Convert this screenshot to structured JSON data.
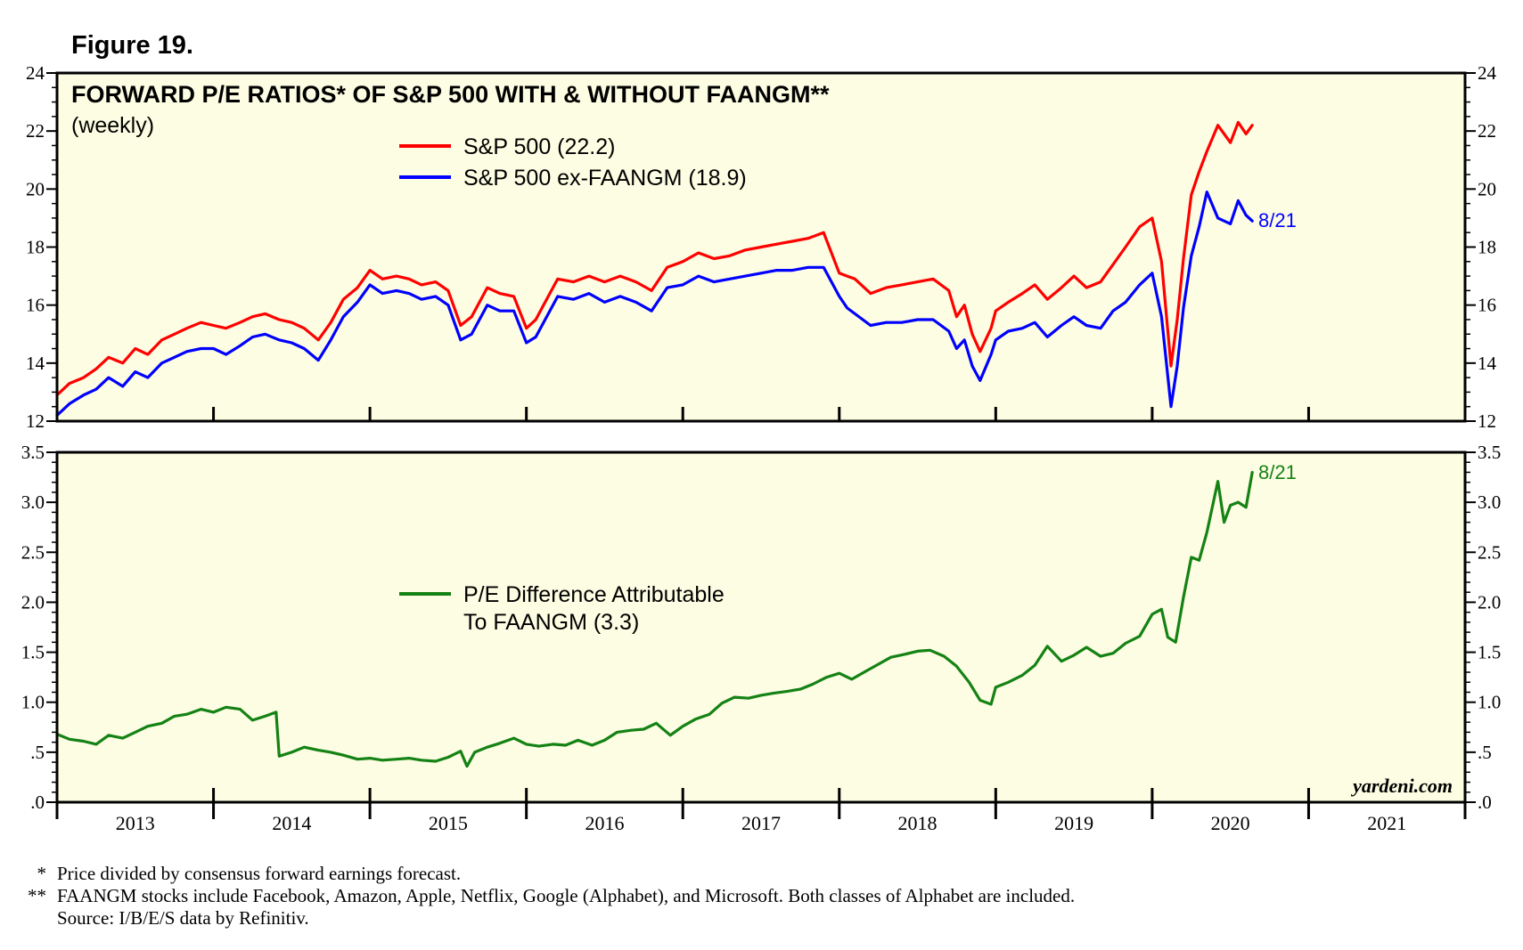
{
  "figure_label": "Figure 19.",
  "colors": {
    "panel_bg": "#fdfde3",
    "sp500": "#ff0000",
    "ex_faangm": "#0000ff",
    "difference": "#148214"
  },
  "footnotes": [
    {
      "marker": "*",
      "text": "Price divided by consensus forward earnings forecast."
    },
    {
      "marker": "**",
      "text": "FAANGM stocks include Facebook, Amazon, Apple, Netflix, Google (Alphabet), and Microsoft. Both classes of Alphabet are included."
    },
    {
      "marker": "",
      "text": "Source: I/B/E/S data by Refinitiv."
    }
  ],
  "brand": "yardeni.com",
  "chart_data": [
    {
      "type": "line",
      "title": "FORWARD P/E RATIOS* OF S&P 500 WITH & WITHOUT FAANGM**",
      "subtitle": "(weekly)",
      "x_labels": [
        "2013",
        "2014",
        "2015",
        "2016",
        "2017",
        "2018",
        "2019",
        "2020",
        "2021"
      ],
      "xlim": [
        2013,
        2022
      ],
      "ylim": [
        12,
        24
      ],
      "y_ticks": [
        "12",
        "14",
        "16",
        "18",
        "20",
        "22",
        "24"
      ],
      "end_label": "8/21",
      "series": [
        {
          "name": "S&P 500 (22.2)",
          "color": "#ff0000",
          "x": [
            2013.0,
            2013.08,
            2013.17,
            2013.25,
            2013.33,
            2013.42,
            2013.5,
            2013.58,
            2013.67,
            2013.75,
            2013.83,
            2013.92,
            2014.0,
            2014.08,
            2014.17,
            2014.25,
            2014.33,
            2014.42,
            2014.5,
            2014.58,
            2014.67,
            2014.75,
            2014.83,
            2014.92,
            2015.0,
            2015.08,
            2015.17,
            2015.25,
            2015.33,
            2015.42,
            2015.5,
            2015.58,
            2015.65,
            2015.75,
            2015.83,
            2015.92,
            2016.0,
            2016.06,
            2016.12,
            2016.2,
            2016.3,
            2016.4,
            2016.5,
            2016.6,
            2016.7,
            2016.8,
            2016.9,
            2017.0,
            2017.1,
            2017.2,
            2017.3,
            2017.4,
            2017.5,
            2017.6,
            2017.7,
            2017.8,
            2017.9,
            2018.0,
            2018.05,
            2018.1,
            2018.2,
            2018.3,
            2018.4,
            2018.5,
            2018.6,
            2018.7,
            2018.75,
            2018.8,
            2018.85,
            2018.9,
            2018.97,
            2019.0,
            2019.08,
            2019.17,
            2019.25,
            2019.33,
            2019.42,
            2019.5,
            2019.58,
            2019.67,
            2019.75,
            2019.83,
            2019.92,
            2020.0,
            2020.06,
            2020.12,
            2020.16,
            2020.2,
            2020.25,
            2020.3,
            2020.35,
            2020.42,
            2020.5,
            2020.55,
            2020.6,
            2020.64
          ],
          "values": [
            12.9,
            13.3,
            13.5,
            13.8,
            14.2,
            14.0,
            14.5,
            14.3,
            14.8,
            15.0,
            15.2,
            15.4,
            15.3,
            15.2,
            15.4,
            15.6,
            15.7,
            15.5,
            15.4,
            15.2,
            14.8,
            15.4,
            16.2,
            16.6,
            17.2,
            16.9,
            17.0,
            16.9,
            16.7,
            16.8,
            16.5,
            15.3,
            15.6,
            16.6,
            16.4,
            16.3,
            15.2,
            15.5,
            16.1,
            16.9,
            16.8,
            17.0,
            16.8,
            17.0,
            16.8,
            16.5,
            17.3,
            17.5,
            17.8,
            17.6,
            17.7,
            17.9,
            18.0,
            18.1,
            18.2,
            18.3,
            18.5,
            17.1,
            17.0,
            16.9,
            16.4,
            16.6,
            16.7,
            16.8,
            16.9,
            16.5,
            15.6,
            16.0,
            15.0,
            14.4,
            15.2,
            15.8,
            16.1,
            16.4,
            16.7,
            16.2,
            16.6,
            17.0,
            16.6,
            16.8,
            17.4,
            18.0,
            18.7,
            19.0,
            17.5,
            13.9,
            15.5,
            17.6,
            19.8,
            20.6,
            21.3,
            22.2,
            21.6,
            22.3,
            21.9,
            22.2
          ]
        },
        {
          "name": "S&P 500 ex-FAANGM (18.9)",
          "color": "#0000ff",
          "x": [
            2013.0,
            2013.08,
            2013.17,
            2013.25,
            2013.33,
            2013.42,
            2013.5,
            2013.58,
            2013.67,
            2013.75,
            2013.83,
            2013.92,
            2014.0,
            2014.08,
            2014.17,
            2014.25,
            2014.33,
            2014.42,
            2014.5,
            2014.58,
            2014.67,
            2014.75,
            2014.83,
            2014.92,
            2015.0,
            2015.08,
            2015.17,
            2015.25,
            2015.33,
            2015.42,
            2015.5,
            2015.58,
            2015.65,
            2015.75,
            2015.83,
            2015.92,
            2016.0,
            2016.06,
            2016.12,
            2016.2,
            2016.3,
            2016.4,
            2016.5,
            2016.6,
            2016.7,
            2016.8,
            2016.9,
            2017.0,
            2017.1,
            2017.2,
            2017.3,
            2017.4,
            2017.5,
            2017.6,
            2017.7,
            2017.8,
            2017.9,
            2018.0,
            2018.05,
            2018.1,
            2018.2,
            2018.3,
            2018.4,
            2018.5,
            2018.6,
            2018.7,
            2018.75,
            2018.8,
            2018.85,
            2018.9,
            2018.97,
            2019.0,
            2019.08,
            2019.17,
            2019.25,
            2019.33,
            2019.42,
            2019.5,
            2019.58,
            2019.67,
            2019.75,
            2019.83,
            2019.92,
            2020.0,
            2020.06,
            2020.12,
            2020.16,
            2020.2,
            2020.25,
            2020.3,
            2020.35,
            2020.42,
            2020.5,
            2020.55,
            2020.6,
            2020.64
          ],
          "values": [
            12.2,
            12.6,
            12.9,
            13.1,
            13.5,
            13.2,
            13.7,
            13.5,
            14.0,
            14.2,
            14.4,
            14.5,
            14.5,
            14.3,
            14.6,
            14.9,
            15.0,
            14.8,
            14.7,
            14.5,
            14.1,
            14.8,
            15.6,
            16.1,
            16.7,
            16.4,
            16.5,
            16.4,
            16.2,
            16.3,
            16.0,
            14.8,
            15.0,
            16.0,
            15.8,
            15.8,
            14.7,
            14.9,
            15.5,
            16.3,
            16.2,
            16.4,
            16.1,
            16.3,
            16.1,
            15.8,
            16.6,
            16.7,
            17.0,
            16.8,
            16.9,
            17.0,
            17.1,
            17.2,
            17.2,
            17.3,
            17.3,
            16.3,
            15.9,
            15.7,
            15.3,
            15.4,
            15.4,
            15.5,
            15.5,
            15.1,
            14.5,
            14.8,
            13.9,
            13.4,
            14.3,
            14.8,
            15.1,
            15.2,
            15.4,
            14.9,
            15.3,
            15.6,
            15.3,
            15.2,
            15.8,
            16.1,
            16.7,
            17.1,
            15.6,
            12.5,
            13.9,
            15.9,
            17.7,
            18.7,
            19.9,
            19.0,
            18.8,
            19.6,
            19.1,
            18.9
          ]
        }
      ]
    },
    {
      "type": "line",
      "x_labels": [
        "2013",
        "2014",
        "2015",
        "2016",
        "2017",
        "2018",
        "2019",
        "2020",
        "2021"
      ],
      "xlim": [
        2013,
        2022
      ],
      "ylim": [
        0,
        3.5
      ],
      "y_ticks": [
        ".0",
        ".5",
        "1.0",
        "1.5",
        "2.0",
        "2.5",
        "3.0",
        "3.5"
      ],
      "end_label": "8/21",
      "series": [
        {
          "name_lines": [
            "P/E Difference Attributable",
            "To FAANGM (3.3)"
          ],
          "color": "#148214",
          "x": [
            2013.0,
            2013.08,
            2013.17,
            2013.25,
            2013.33,
            2013.42,
            2013.5,
            2013.58,
            2013.67,
            2013.75,
            2013.83,
            2013.92,
            2014.0,
            2014.08,
            2014.17,
            2014.25,
            2014.33,
            2014.4,
            2014.42,
            2014.5,
            2014.58,
            2014.67,
            2014.75,
            2014.83,
            2014.92,
            2015.0,
            2015.08,
            2015.17,
            2015.25,
            2015.33,
            2015.42,
            2015.5,
            2015.58,
            2015.62,
            2015.67,
            2015.75,
            2015.83,
            2015.92,
            2016.0,
            2016.08,
            2016.17,
            2016.25,
            2016.33,
            2016.42,
            2016.5,
            2016.58,
            2016.67,
            2016.75,
            2016.83,
            2016.92,
            2017.0,
            2017.08,
            2017.17,
            2017.25,
            2017.33,
            2017.42,
            2017.5,
            2017.58,
            2017.67,
            2017.75,
            2017.83,
            2017.92,
            2018.0,
            2018.08,
            2018.17,
            2018.25,
            2018.33,
            2018.42,
            2018.5,
            2018.58,
            2018.67,
            2018.75,
            2018.83,
            2018.9,
            2018.97,
            2019.0,
            2019.08,
            2019.17,
            2019.25,
            2019.33,
            2019.42,
            2019.5,
            2019.58,
            2019.67,
            2019.75,
            2019.83,
            2019.92,
            2020.0,
            2020.06,
            2020.1,
            2020.15,
            2020.2,
            2020.25,
            2020.3,
            2020.35,
            2020.42,
            2020.46,
            2020.5,
            2020.55,
            2020.6,
            2020.64
          ],
          "values": [
            0.68,
            0.63,
            0.61,
            0.58,
            0.67,
            0.64,
            0.7,
            0.76,
            0.79,
            0.86,
            0.88,
            0.93,
            0.9,
            0.95,
            0.93,
            0.82,
            0.86,
            0.9,
            0.46,
            0.5,
            0.55,
            0.52,
            0.5,
            0.47,
            0.43,
            0.44,
            0.42,
            0.43,
            0.44,
            0.42,
            0.41,
            0.45,
            0.51,
            0.36,
            0.5,
            0.55,
            0.59,
            0.64,
            0.58,
            0.56,
            0.58,
            0.57,
            0.62,
            0.57,
            0.62,
            0.7,
            0.72,
            0.73,
            0.79,
            0.67,
            0.76,
            0.83,
            0.88,
            0.99,
            1.05,
            1.04,
            1.07,
            1.09,
            1.11,
            1.13,
            1.18,
            1.25,
            1.29,
            1.23,
            1.31,
            1.38,
            1.45,
            1.48,
            1.51,
            1.52,
            1.46,
            1.36,
            1.2,
            1.02,
            0.98,
            1.15,
            1.2,
            1.27,
            1.37,
            1.56,
            1.41,
            1.47,
            1.55,
            1.46,
            1.49,
            1.59,
            1.66,
            1.88,
            1.93,
            1.65,
            1.6,
            2.05,
            2.45,
            2.42,
            2.7,
            3.21,
            2.8,
            2.97,
            3.0,
            2.95,
            3.3
          ]
        }
      ]
    }
  ]
}
